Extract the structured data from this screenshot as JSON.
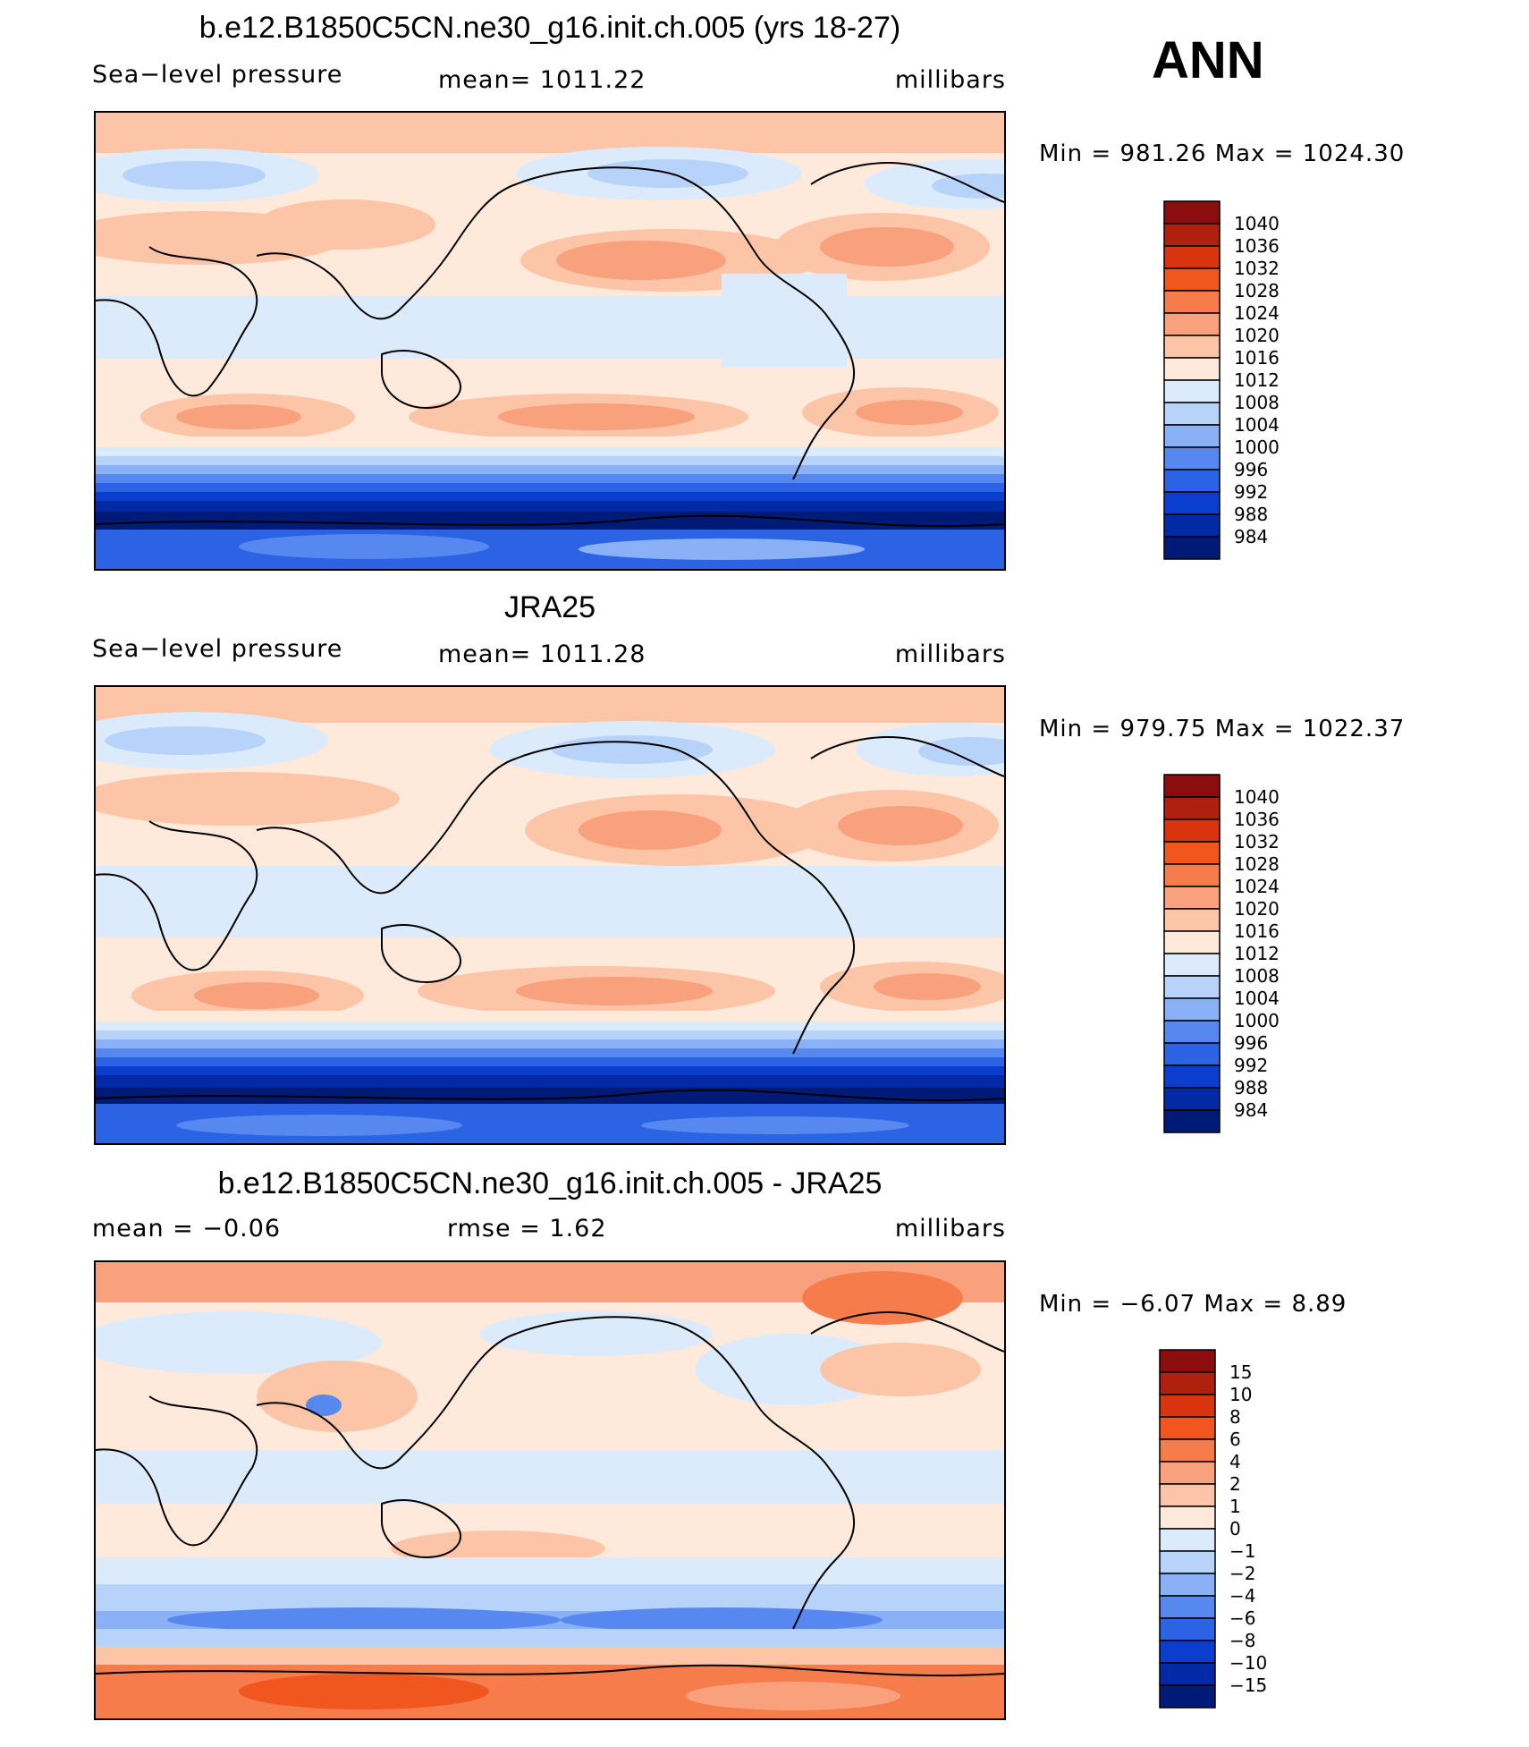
{
  "header": {
    "season": "ANN"
  },
  "panels": [
    {
      "title": "b.e12.B1850C5CN.ne30_g16.init.ch.005 (yrs 18-27)",
      "left_label": "Sea−level pressure",
      "center_label": "mean=  1011.22",
      "units": "millibars",
      "minmax": "Min  =  981.26  Max  =  1024.30",
      "colorbar": {
        "labels": [
          "1040",
          "1036",
          "1032",
          "1028",
          "1024",
          "1020",
          "1016",
          "1012",
          "1008",
          "1004",
          "1000",
          "996",
          "992",
          "988",
          "984"
        ],
        "colors": [
          "#8b0d0d",
          "#b0200e",
          "#d8350f",
          "#f0561e",
          "#f67c4b",
          "#f9a07c",
          "#fcc5a8",
          "#fee9da",
          "#dcebfb",
          "#b8d3fa",
          "#8ab0f6",
          "#5688ef",
          "#2c63e4",
          "#0b3dce",
          "#032aa6",
          "#001a78"
        ]
      }
    },
    {
      "title": "JRA25",
      "left_label": "Sea−level pressure",
      "center_label": "mean=  1011.28",
      "units": "millibars",
      "minmax": "Min  =  979.75  Max  =  1022.37",
      "colorbar": {
        "labels": [
          "1040",
          "1036",
          "1032",
          "1028",
          "1024",
          "1020",
          "1016",
          "1012",
          "1008",
          "1004",
          "1000",
          "996",
          "992",
          "988",
          "984"
        ],
        "colors": [
          "#8b0d0d",
          "#b0200e",
          "#d8350f",
          "#f0561e",
          "#f67c4b",
          "#f9a07c",
          "#fcc5a8",
          "#fee9da",
          "#dcebfb",
          "#b8d3fa",
          "#8ab0f6",
          "#5688ef",
          "#2c63e4",
          "#0b3dce",
          "#032aa6",
          "#001a78"
        ]
      }
    },
    {
      "title": "b.e12.B1850C5CN.ne30_g16.init.ch.005 - JRA25",
      "left_label": "mean  =     −0.06",
      "center_label": "rmse  =      1.62",
      "units": "millibars",
      "minmax": "Min  =     −6.07  Max  =     8.89",
      "colorbar": {
        "labels": [
          "15",
          "10",
          "8",
          "6",
          "4",
          "2",
          "1",
          "0",
          "−1",
          "−2",
          "−4",
          "−6",
          "−8",
          "−10",
          "−15"
        ],
        "colors": [
          "#8b0d0d",
          "#b0200e",
          "#d8350f",
          "#f0561e",
          "#f67c4b",
          "#f9a07c",
          "#fcc5a8",
          "#fee9da",
          "#dcebfb",
          "#b8d3fa",
          "#8ab0f6",
          "#5688ef",
          "#2c63e4",
          "#0b3dce",
          "#032aa6",
          "#001a78"
        ]
      }
    }
  ]
}
